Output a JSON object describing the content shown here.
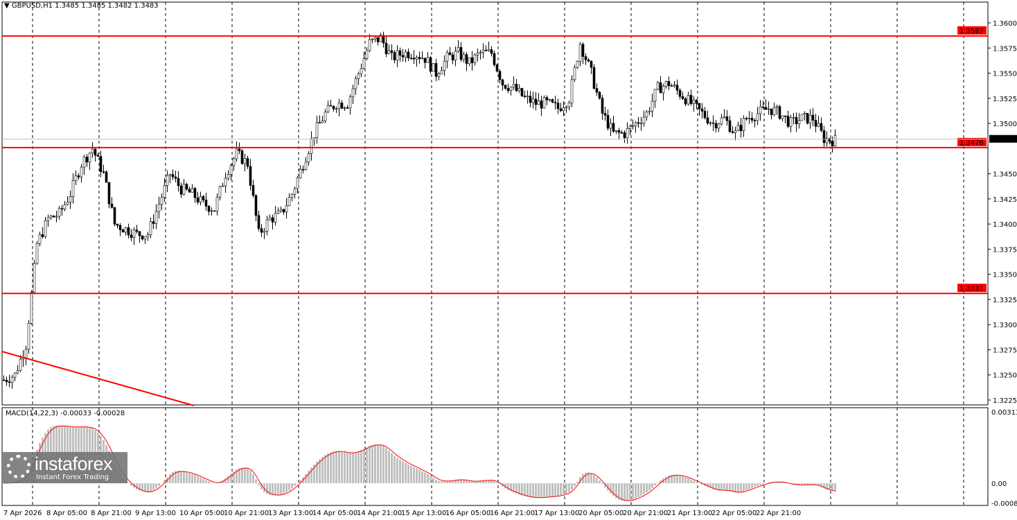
{
  "header": {
    "symbol": "GBPUSD,H1",
    "ohlc": "1.3485 1.3485 1.3482 1.3483"
  },
  "macd_label": "MACD(14,22,3) -0.00033 -0.00028",
  "logo": {
    "brand": "instaforex",
    "tagline": "Instant Forex Trading"
  },
  "colors": {
    "level": "#ff0000",
    "candle": "#000000",
    "histogram": "#c0c0c0",
    "signal": "#ff0000"
  },
  "chart_data": {
    "type": "candlestick",
    "symbol": "GBPUSD",
    "timeframe": "H1",
    "ylim": [
      1.3218,
      1.3608
    ],
    "y_ticks": [
      "1.3600",
      "1.3575",
      "1.3550",
      "1.3525",
      "1.3500",
      "1.3450",
      "1.3425",
      "1.3400",
      "1.3375",
      "1.3350",
      "1.3325",
      "1.3300",
      "1.3275",
      "1.3250",
      "1.3225"
    ],
    "x_ticks": [
      "7 Apr 2026",
      "8 Apr 05:00",
      "8 Apr 21:00",
      "9 Apr 13:00",
      "10 Apr 05:00",
      "10 Apr 21:00",
      "13 Apr 13:00",
      "14 Apr 05:00",
      "14 Apr 21:00",
      "15 Apr 13:00",
      "16 Apr 05:00",
      "16 Apr 21:00",
      "17 Apr 13:00",
      "20 Apr 05:00",
      "20 Apr 21:00",
      "21 Apr 13:00",
      "22 Apr 05:00",
      "22 Apr 21:00"
    ],
    "approx_close_every_4_bars": [
      1.3245,
      1.325,
      1.328,
      1.338,
      1.3405,
      1.341,
      1.343,
      1.346,
      1.3475,
      1.345,
      1.34,
      1.3395,
      1.339,
      1.339,
      1.342,
      1.345,
      1.3435,
      1.343,
      1.342,
      1.3415,
      1.345,
      1.347,
      1.346,
      1.339,
      1.3405,
      1.341,
      1.343,
      1.346,
      1.349,
      1.351,
      1.352,
      1.352,
      1.355,
      1.358,
      1.3585,
      1.3565,
      1.357,
      1.357,
      1.3565,
      1.355,
      1.3565,
      1.357,
      1.356,
      1.357,
      1.357,
      1.354,
      1.3535,
      1.3525,
      1.352,
      1.352,
      1.3515,
      1.3525,
      1.358,
      1.355,
      1.351,
      1.349,
      1.349,
      1.35,
      1.351,
      1.3535,
      1.354,
      1.353,
      1.352,
      1.351,
      1.35,
      1.3505,
      1.349,
      1.3505,
      1.351,
      1.3515,
      1.351,
      1.35,
      1.3505,
      1.3505,
      1.3485,
      1.3483
    ],
    "levels": [
      {
        "label": "1.3587",
        "value": 1.3587
      },
      {
        "label": "1.3476",
        "value": 1.3476
      },
      {
        "label": "1.3331",
        "value": 1.3331
      }
    ],
    "current_price": {
      "label": "1.3483",
      "value": 1.3483
    },
    "macd": {
      "params": "14,22,3",
      "ylim": [
        -0.00087,
        0.00313
      ],
      "y_ticks": [
        "0.00313",
        "0.00",
        "-0.00087"
      ]
    }
  }
}
